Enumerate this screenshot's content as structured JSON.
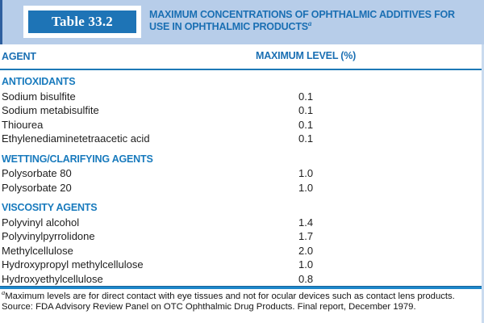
{
  "table_label": "Table 33.2",
  "title": {
    "text": "MAXIMUM CONCENTRATIONS OF OPHTHALMIC ADDITIVES FOR USE IN OPHTHALMIC PRODUCTS",
    "superscript": "a"
  },
  "columns": {
    "agent": "AGENT",
    "level": "MAXIMUM LEVEL (%)"
  },
  "sections": [
    {
      "header": "ANTIOXIDANTS",
      "rows": [
        {
          "agent": "Sodium bisulfite",
          "level": "0.1"
        },
        {
          "agent": "Sodium metabisulfite",
          "level": "0.1"
        },
        {
          "agent": "Thiourea",
          "level": "0.1"
        },
        {
          "agent": "Ethylenediaminetetraacetic acid",
          "level": "0.1"
        }
      ]
    },
    {
      "header": "WETTING/CLARIFYING AGENTS",
      "rows": [
        {
          "agent": "Polysorbate 80",
          "level": "1.0"
        },
        {
          "agent": "Polysorbate 20",
          "level": "1.0"
        }
      ]
    },
    {
      "header": "VISCOSITY AGENTS",
      "rows": [
        {
          "agent": "Polyvinyl alcohol",
          "level": "1.4"
        },
        {
          "agent": "Polyvinylpyrrolidone",
          "level": "1.7"
        },
        {
          "agent": "Methylcellulose",
          "level": "2.0"
        },
        {
          "agent": "Hydroxypropyl methylcellulose",
          "level": "1.0"
        },
        {
          "agent": "Hydroxyethylcellulose",
          "level": "0.8"
        }
      ]
    }
  ],
  "footnotes": {
    "note_superscript": "a",
    "note": "Maximum levels are for direct contact with eye tissues and not for ocular devices such as contact lens products.",
    "source": "Source: FDA Advisory Review Panel on OTC Ophthalmic Drug Products. Final report, December 1979."
  },
  "colors": {
    "band_background": "#b7cde9",
    "accent_blue": "#1a6fb3",
    "section_blue": "#187abd",
    "thick_rule_blue": "#1f88ca",
    "body_text": "#1e1e1e"
  }
}
